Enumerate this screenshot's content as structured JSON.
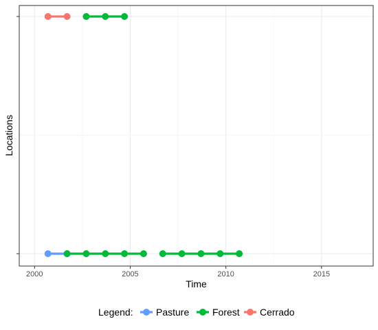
{
  "chart_data": {
    "type": "line",
    "title": "",
    "xlabel": "Time",
    "ylabel": "Locations",
    "xlim": [
      1999.2,
      2017.7
    ],
    "x_ticks": [
      2000,
      2005,
      2010,
      2015
    ],
    "y_categories": [
      "",
      ""
    ],
    "grid": true,
    "legend": {
      "title": "Legend:",
      "position": "bottom",
      "entries": [
        "Pasture",
        "Forest",
        "Cerrado"
      ]
    },
    "series": [
      {
        "name": "Pasture",
        "color": "#619CFF",
        "segments": [
          {
            "row": 0,
            "x": [
              2000.7,
              2001.7
            ]
          }
        ]
      },
      {
        "name": "Forest",
        "color": "#00BA38",
        "segments": [
          {
            "row": 0,
            "x": [
              2001.7,
              2002.7,
              2003.7,
              2004.7,
              2005.7
            ]
          },
          {
            "row": 0,
            "x": [
              2006.7,
              2007.7,
              2008.7,
              2009.7,
              2010.7
            ]
          },
          {
            "row": 1,
            "x": [
              2002.7,
              2003.7,
              2004.7
            ]
          }
        ]
      },
      {
        "name": "Cerrado",
        "color": "#F8766D",
        "segments": [
          {
            "row": 1,
            "x": [
              2000.7,
              2001.7
            ]
          }
        ]
      }
    ]
  }
}
